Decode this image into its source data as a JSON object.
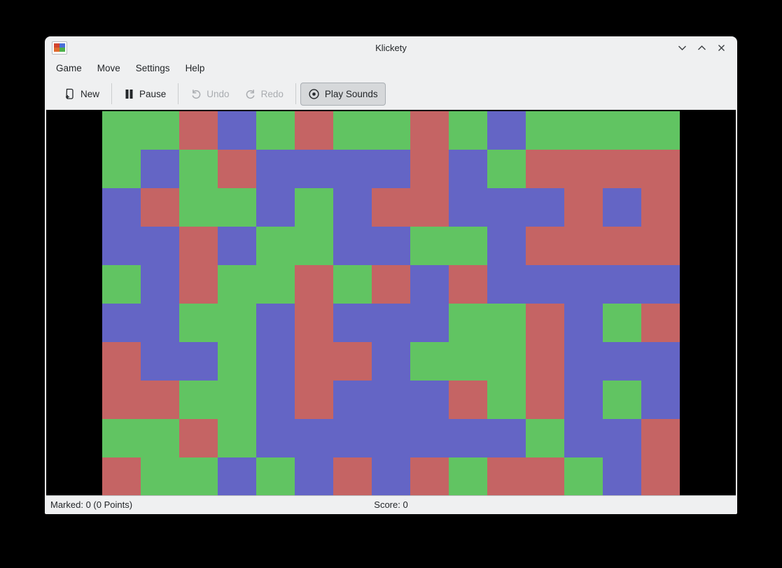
{
  "window": {
    "title": "Klickety",
    "controls": [
      {
        "name": "minimize",
        "icon": "chevron-down-icon"
      },
      {
        "name": "maximize",
        "icon": "chevron-up-icon"
      },
      {
        "name": "close",
        "icon": "close-x-icon"
      }
    ],
    "app_icon": {
      "name": "klickety-app-icon",
      "square_colors": [
        "#d2452e",
        "#4a6fd8",
        "#e06a2e",
        "#4db04a"
      ]
    }
  },
  "menu": {
    "items": [
      {
        "label": "Game"
      },
      {
        "label": "Move"
      },
      {
        "label": "Settings"
      },
      {
        "label": "Help"
      }
    ]
  },
  "toolbar": {
    "items": [
      {
        "label": "New",
        "icon": "document-new-icon",
        "enabled": true,
        "pressed": false
      },
      {
        "label": "Pause",
        "icon": "pause-icon",
        "enabled": true,
        "pressed": false
      },
      {
        "label": "Undo",
        "icon": "undo-arrow-icon",
        "enabled": false,
        "pressed": false
      },
      {
        "label": "Redo",
        "icon": "redo-arrow-icon",
        "enabled": false,
        "pressed": false
      },
      {
        "label": "Play Sounds",
        "icon": "circle-dot-icon",
        "enabled": true,
        "pressed": true
      }
    ]
  },
  "statusbar": {
    "marked": "Marked: 0 (0 Points)",
    "score": "Score: 0"
  },
  "board": {
    "cols": 15,
    "rows": 10,
    "cell_size": 55,
    "colors": {
      "G": "#61c462",
      "R": "#c56464",
      "B": "#6465c5"
    },
    "grid": [
      "GGRBGRGGRGBGGGG",
      "GBGRBBBBRBGRRRR",
      "BRGGBGBRRBBBRBR",
      "BBRBGGBBGGBRRRR",
      "GBRGGRGRBRBBBBB",
      "BBGGBRBBBGGRBGR",
      "RBBGBRRBGGGRBBB",
      "RRGGBRBBBRGRBGB",
      "GGRGBBBBBBBGBBR",
      "RGGBGBRBRGRRGBR"
    ]
  }
}
